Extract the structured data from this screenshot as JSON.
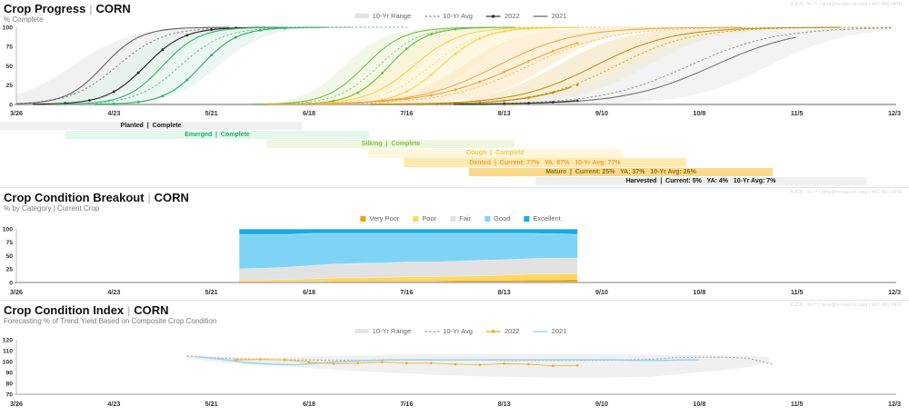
{
  "watermark": "KJCR, Inc™ | lena@teviascon.com | 402.460.0470",
  "x_axis": {
    "tick_labels": [
      "3/26",
      "4/23",
      "5/21",
      "6/18",
      "7/16",
      "8/13",
      "9/10",
      "10/8",
      "11/5",
      "12/3"
    ],
    "tick_days": [
      0,
      28,
      56,
      84,
      112,
      140,
      168,
      196,
      224,
      252
    ],
    "total_days": 252
  },
  "sections": {
    "progress": {
      "title": "Crop Progress",
      "title_sep": "|",
      "title_crop": "CORN",
      "subtitle": "% Complete",
      "y_ticks": [
        100,
        75,
        50,
        25,
        0
      ],
      "legend": [
        {
          "label": "10-Yr Range",
          "type": "band",
          "color": "#e2e2e2"
        },
        {
          "label": "10-Yr Avg",
          "type": "dashed",
          "color": "#8a8a8a"
        },
        {
          "label": "2022",
          "type": "marker-line",
          "color": "#3a3a3a"
        },
        {
          "label": "2021",
          "type": "line",
          "color": "#6b6b6b"
        }
      ],
      "chart_data": {
        "type": "line",
        "ylabel": "% Complete",
        "ylim": [
          0,
          100
        ],
        "series_names": [
          "10-Yr Range",
          "10-Yr Avg",
          "2022",
          "2021"
        ],
        "stages": [
          {
            "name": "Planted",
            "bar_label": "Planted  |  Complete",
            "status": "Complete",
            "color": "#5a5a5a",
            "color_2022": "#262626",
            "band_color": "#e9e9e9",
            "bar_color": "#f0f0f0",
            "label_color": "#1a1a1a",
            "bar_days": [
              -5,
              82
            ],
            "band_days": [
              0,
              80
            ],
            "curves": {
              "range_hi": {
                "mid": 16,
                "k": 0.12
              },
              "range_lo": {
                "mid": 42,
                "k": 0.14
              },
              "avg": {
                "mid": 29,
                "k": 0.15
              },
              "y2021": {
                "mid": 25,
                "k": 0.19
              },
              "y2022": {
                "mid": 37,
                "k": 0.18
              }
            }
          },
          {
            "name": "Emerged",
            "bar_label": "Emerged  |  Complete",
            "status": "Complete",
            "color": "#2fae67",
            "band_color": "#def2e6",
            "bar_color": "#e3f7ec",
            "label_color": "#21b06e",
            "bar_days": [
              14,
              101
            ],
            "band_days": [
              4,
              95
            ],
            "curves": {
              "range_hi": {
                "mid": 30,
                "k": 0.14
              },
              "range_lo": {
                "mid": 58,
                "k": 0.15
              },
              "avg": {
                "mid": 47,
                "k": 0.16
              },
              "y2021": {
                "mid": 42,
                "k": 0.19
              },
              "y2022": {
                "mid": 53,
                "k": 0.19
              }
            }
          },
          {
            "name": "Silking",
            "bar_label": "Silking  |  Complete",
            "status": "Complete",
            "color": "#74bd43",
            "band_color": "#eaf4da",
            "bar_color": "#edf6df",
            "label_color": "#86bf4a",
            "bar_days": [
              72,
              143
            ],
            "band_days": [
              76,
              140
            ],
            "curves": {
              "range_hi": {
                "mid": 94,
                "k": 0.17
              },
              "range_lo": {
                "mid": 116,
                "k": 0.16
              },
              "avg": {
                "mid": 104,
                "k": 0.17
              },
              "y2021": {
                "mid": 100,
                "k": 0.18
              },
              "y2022": {
                "mid": 107,
                "k": 0.19
              }
            }
          },
          {
            "name": "Dough",
            "bar_label": "Dough  |  Complete",
            "status": "Complete",
            "color": "#f9cf4a",
            "band_color": "#fdf3d0",
            "bar_color": "#fff7dc",
            "label_color": "#f2cb4e",
            "bar_days": [
              101,
              174
            ],
            "band_days": [
              90,
              155
            ],
            "curves": {
              "range_hi": {
                "mid": 107,
                "k": 0.15
              },
              "range_lo": {
                "mid": 131,
                "k": 0.14
              },
              "avg": {
                "mid": 119,
                "k": 0.14
              },
              "y2021": {
                "mid": 114,
                "k": 0.15
              },
              "y2022": {
                "mid": 122,
                "k": 0.16
              }
            }
          },
          {
            "name": "Dented",
            "bar_label": "Dented  |  Current: 77%   YA: 87%   10-Yr Avg: 77%",
            "stats": {
              "current": 77,
              "ya": 87,
              "ten_yr_avg": 77
            },
            "color": "#f0a33c",
            "band_color": "#fbe8c4",
            "bar_color": "#ffeab0",
            "label_color": "#ef9f35",
            "bar_days": [
              111,
              192
            ],
            "band_days": [
              104,
              188
            ],
            "curves": {
              "range_hi": {
                "mid": 128,
                "k": 0.12
              },
              "range_lo": {
                "mid": 153,
                "k": 0.11
              },
              "avg": {
                "mid": 147,
                "k": 0.085
              },
              "y2021": {
                "mid": 138,
                "k": 0.09
              },
              "y2022": {
                "mid": 144,
                "k": 0.08
              }
            }
          },
          {
            "name": "Mature",
            "bar_label": "Mature  |  Current: 25%   YA: 37%   10-Yr Avg: 26%",
            "stats": {
              "current": 25,
              "ya": 37,
              "ten_yr_avg": 26
            },
            "color": "#bd8e0a",
            "band_color": "#f3e4bc",
            "bar_color": "#fbd98b",
            "label_color": "#8f6e0c",
            "bar_days": [
              130,
              217
            ],
            "band_days": [
              130,
              218
            ],
            "curves": {
              "range_hi": {
                "mid": 155,
                "k": 0.1
              },
              "range_lo": {
                "mid": 181,
                "k": 0.1
              },
              "avg": {
                "mid": 172,
                "k": 0.09
              },
              "y2021": {
                "mid": 166,
                "k": 0.09
              },
              "y2022": {
                "mid": 173,
                "k": 0.09
              }
            }
          },
          {
            "name": "Harvested",
            "bar_label": "Harvested  |  Current: 5%   YA: 4%   10-Yr Avg: 7%",
            "stats": {
              "current": 5,
              "ya": 4,
              "ten_yr_avg": 7
            },
            "color": "#6e6e6e",
            "color_2022": "#2e2e2e",
            "band_color": "#ebebeb",
            "bar_color": "#f0f0f0",
            "label_color": "#111111",
            "bar_days": [
              149,
              244
            ],
            "band_days": [
              146,
              252
            ],
            "curves": {
              "range_hi": {
                "mid": 176,
                "k": 0.09
              },
              "range_lo": {
                "mid": 216,
                "k": 0.09
              },
              "avg": {
                "mid": 193,
                "k": 0.08
              },
              "y2021": {
                "mid": 200,
                "k": 0.08,
                "end": 224
              },
              "y2022": {
                "mid": 198,
                "k": 0.08
              }
            }
          }
        ],
        "current_day": 161
      }
    },
    "breakout": {
      "title": "Crop Condition Breakout",
      "title_sep": "|",
      "title_crop": "CORN",
      "subtitle": "% by Category | Current Crop",
      "y_ticks": [
        100,
        75,
        50,
        25,
        0
      ],
      "legend": [
        {
          "label": "Very Poor",
          "type": "square",
          "color": "#f3a200"
        },
        {
          "label": "Poor",
          "type": "square",
          "color": "#ffd75e"
        },
        {
          "label": "Fair",
          "type": "square",
          "color": "#e2e2e2"
        },
        {
          "label": "Good",
          "type": "square",
          "color": "#7fd4f5"
        },
        {
          "label": "Excellent",
          "type": "square",
          "color": "#18a8e8"
        }
      ],
      "chart_data": {
        "type": "area",
        "ylabel": "% by Category",
        "ylim": [
          0,
          100
        ],
        "x_days": [
          64,
          71,
          78,
          85,
          92,
          99,
          106,
          113,
          120,
          127,
          134,
          141,
          148,
          155,
          161
        ],
        "series": [
          {
            "name": "Very Poor",
            "color": "#f3a200",
            "values": [
              2,
              2,
              2,
              2,
              3,
              3,
              3,
              3,
              3,
              4,
              4,
              4,
              5,
              5,
              6
            ]
          },
          {
            "name": "Poor",
            "color": "#ffd75e",
            "values": [
              3,
              3,
              4,
              5,
              6,
              6,
              7,
              8,
              8,
              8,
              9,
              10,
              11,
              11,
              11
            ]
          },
          {
            "name": "Fair",
            "color": "#e2e2e2",
            "values": [
              21,
              22,
              23,
              25,
              26,
              27,
              27,
              28,
              28,
              28,
              29,
              29,
              29,
              30,
              29
            ]
          },
          {
            "name": "Good",
            "color": "#7fd4f5",
            "values": [
              64,
              63,
              61,
              60,
              57,
              56,
              55,
              53,
              53,
              52,
              50,
              49,
              47,
              45,
              44
            ]
          },
          {
            "name": "Excellent",
            "color": "#18a8e8",
            "values": [
              10,
              10,
              10,
              8,
              8,
              8,
              8,
              8,
              8,
              8,
              8,
              8,
              8,
              9,
              10
            ]
          }
        ]
      }
    },
    "index": {
      "title": "Crop Condition Index",
      "title_sep": "|",
      "title_crop": "CORN",
      "subtitle": "Forecasting % of Trend Yield Based on Composite Crop Condition",
      "y_ticks": [
        120,
        110,
        100,
        90,
        80,
        70
      ],
      "legend": [
        {
          "label": "10-Yr Range",
          "type": "band",
          "color": "#e5e5e5"
        },
        {
          "label": "10-Yr Avg",
          "type": "dashed",
          "color": "#9a9a9a"
        },
        {
          "label": "2022",
          "type": "marker-line",
          "color": "#efa91f"
        },
        {
          "label": "2021",
          "type": "line",
          "color": "#8bd2ee"
        }
      ],
      "chart_data": {
        "type": "line",
        "ylabel": "% of Trend Yield",
        "ylim": [
          70,
          120
        ],
        "band": {
          "x": [
            49,
            56,
            63,
            70,
            77,
            84,
            91,
            98,
            105,
            112,
            119,
            126,
            133,
            140,
            147,
            154,
            161,
            168,
            175,
            182,
            189,
            196,
            203,
            210,
            216
          ],
          "hi": [
            106,
            104.5,
            104,
            103.5,
            104,
            104.5,
            105,
            105.5,
            106,
            106.5,
            107,
            107,
            107,
            107,
            107,
            107,
            107,
            106.5,
            106.5,
            106,
            106,
            106,
            105.5,
            105,
            104
          ],
          "lo": [
            103,
            100,
            98,
            96.5,
            95.5,
            94,
            92.5,
            91,
            90,
            89,
            88,
            87,
            86.5,
            86,
            85.5,
            85,
            85,
            85,
            85.5,
            86,
            88,
            90,
            92,
            95,
            99
          ]
        },
        "series": [
          {
            "name": "10-Yr Avg",
            "style": "dashed",
            "color": "#9c9c9c",
            "x": [
              49,
              56,
              63,
              70,
              77,
              84,
              91,
              98,
              105,
              112,
              119,
              126,
              133,
              140,
              147,
              154,
              161,
              168,
              175,
              182,
              189,
              196,
              203,
              210,
              217
            ],
            "y": [
              105,
              103.5,
              102.5,
              102,
              101.5,
              101.5,
              101,
              101,
              101.5,
              101.5,
              101.5,
              101.5,
              101.5,
              101,
              101,
              101,
              101,
              101,
              101.5,
              102,
              103.5,
              104,
              104,
              103,
              97.5
            ]
          },
          {
            "name": "2021",
            "style": "line",
            "color": "#8bd2ee",
            "x": [
              52,
              59,
              66,
              73,
              80,
              87,
              94,
              101,
              108,
              115,
              122,
              129,
              136,
              143,
              150,
              157,
              164,
              171,
              178,
              185,
              192,
              196
            ],
            "y": [
              104.5,
              102,
              99,
              97.5,
              97,
              98.5,
              100,
              101,
              101.5,
              101.5,
              101.5,
              101.5,
              101.5,
              101.5,
              101.5,
              101.5,
              101.5,
              101.5,
              101,
              101,
              101.5,
              101.5
            ]
          },
          {
            "name": "2022",
            "style": "marker-line",
            "color": "#f2bc3a",
            "marker_color": "#efa91f",
            "x": [
              63,
              70,
              77,
              84,
              91,
              98,
              105,
              112,
              119,
              126,
              133,
              140,
              147,
              154,
              161
            ],
            "y": [
              101.5,
              102,
              101.5,
              99.5,
              98,
              98.5,
              99.5,
              98.5,
              98.5,
              97.5,
              97,
              98,
              97.5,
              96,
              96.5
            ]
          }
        ]
      }
    }
  }
}
